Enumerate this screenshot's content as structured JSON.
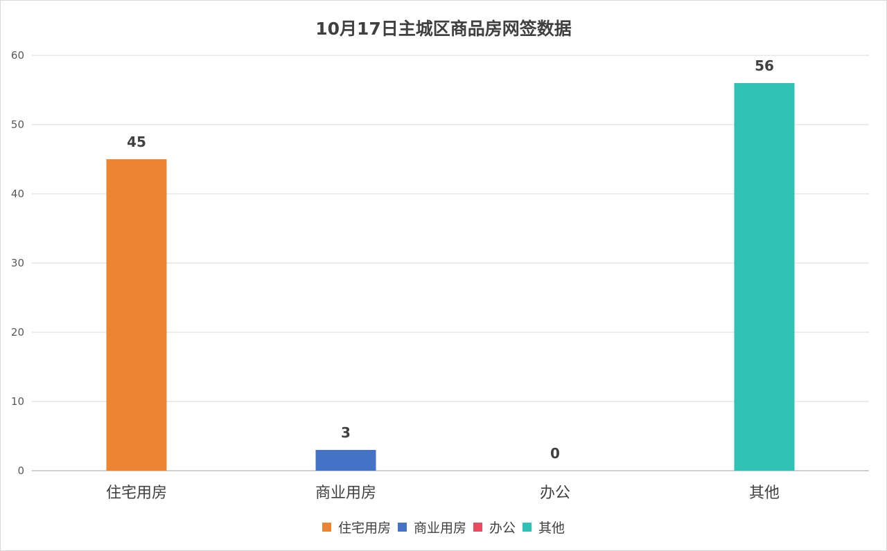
{
  "chart_data": {
    "type": "bar",
    "title": "10月17日主城区商品房网签数据",
    "categories": [
      "住宅用房",
      "商业用房",
      "办公",
      "其他"
    ],
    "values": [
      45,
      3,
      0,
      56
    ],
    "colors": [
      "#ed8431",
      "#4472c4",
      "#e84c5f",
      "#2fc1b4"
    ],
    "ylim": [
      0,
      60
    ],
    "yticks": [
      "0",
      "10",
      "20",
      "30",
      "40",
      "50",
      "60"
    ],
    "grid": true,
    "legend_position": "bottom",
    "xlabel": "",
    "ylabel": ""
  }
}
